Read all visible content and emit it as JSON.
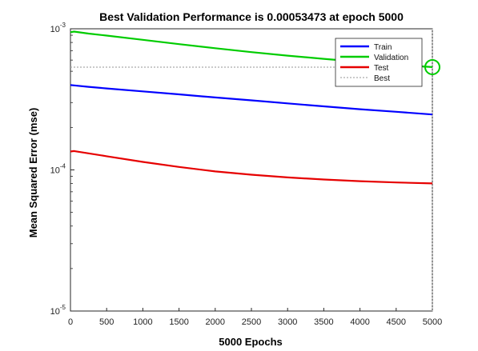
{
  "chart_data": {
    "type": "line",
    "title": "Best Validation Performance is 0.00053473 at epoch 5000",
    "xlabel": "5000 Epochs",
    "ylabel": "Mean Squared Error  (mse)",
    "xlim": [
      0,
      5000
    ],
    "ylim": [
      1e-05,
      0.001
    ],
    "yscale": "log",
    "x_ticks": [
      0,
      500,
      1000,
      1500,
      2000,
      2500,
      3000,
      3500,
      4000,
      4500,
      5000
    ],
    "y_ticks": [
      {
        "value": 0.001,
        "base": "10",
        "exp": "-3"
      },
      {
        "value": 0.0001,
        "base": "10",
        "exp": "-4"
      },
      {
        "value": 1e-05,
        "base": "10",
        "exp": "-5"
      }
    ],
    "x": [
      0,
      50,
      250,
      500,
      1000,
      1500,
      2000,
      2500,
      3000,
      3500,
      4000,
      4500,
      5000
    ],
    "series": [
      {
        "name": "Train",
        "color": "#0000ff",
        "values": [
          0.000399,
          0.000397,
          0.000388,
          0.000378,
          0.00036,
          0.000343,
          0.000326,
          0.000311,
          0.000296,
          0.000282,
          0.000269,
          0.000258,
          0.000247
        ]
      },
      {
        "name": "Validation",
        "color": "#00cc00",
        "values": [
          0.000945,
          0.000955,
          0.000925,
          0.000895,
          0.000835,
          0.000778,
          0.000728,
          0.000683,
          0.000645,
          0.000612,
          0.000583,
          0.000557,
          0.000535
        ]
      },
      {
        "name": "Test",
        "color": "#e60000",
        "values": [
          0.000135,
          0.000136,
          0.000131,
          0.000125,
          0.000114,
          0.000105,
          9.75e-05,
          9.25e-05,
          8.85e-05,
          8.55e-05,
          8.32e-05,
          8.15e-05,
          8.02e-05
        ]
      }
    ],
    "best": {
      "name": "Best",
      "value": 0.00053473,
      "epoch": 5000,
      "color": "#aaaaaa"
    },
    "grid": false,
    "legend_position": "top-right"
  }
}
